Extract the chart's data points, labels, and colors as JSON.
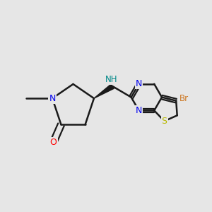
{
  "background_color": "#e6e6e6",
  "bond_color": "#1a1a1a",
  "atom_colors": {
    "N": "#0000ee",
    "O": "#ff0000",
    "S": "#b8b800",
    "Br": "#cc7722",
    "NH": "#008888",
    "C": "#1a1a1a"
  },
  "figsize": [
    3.0,
    3.0
  ],
  "dpi": 100
}
